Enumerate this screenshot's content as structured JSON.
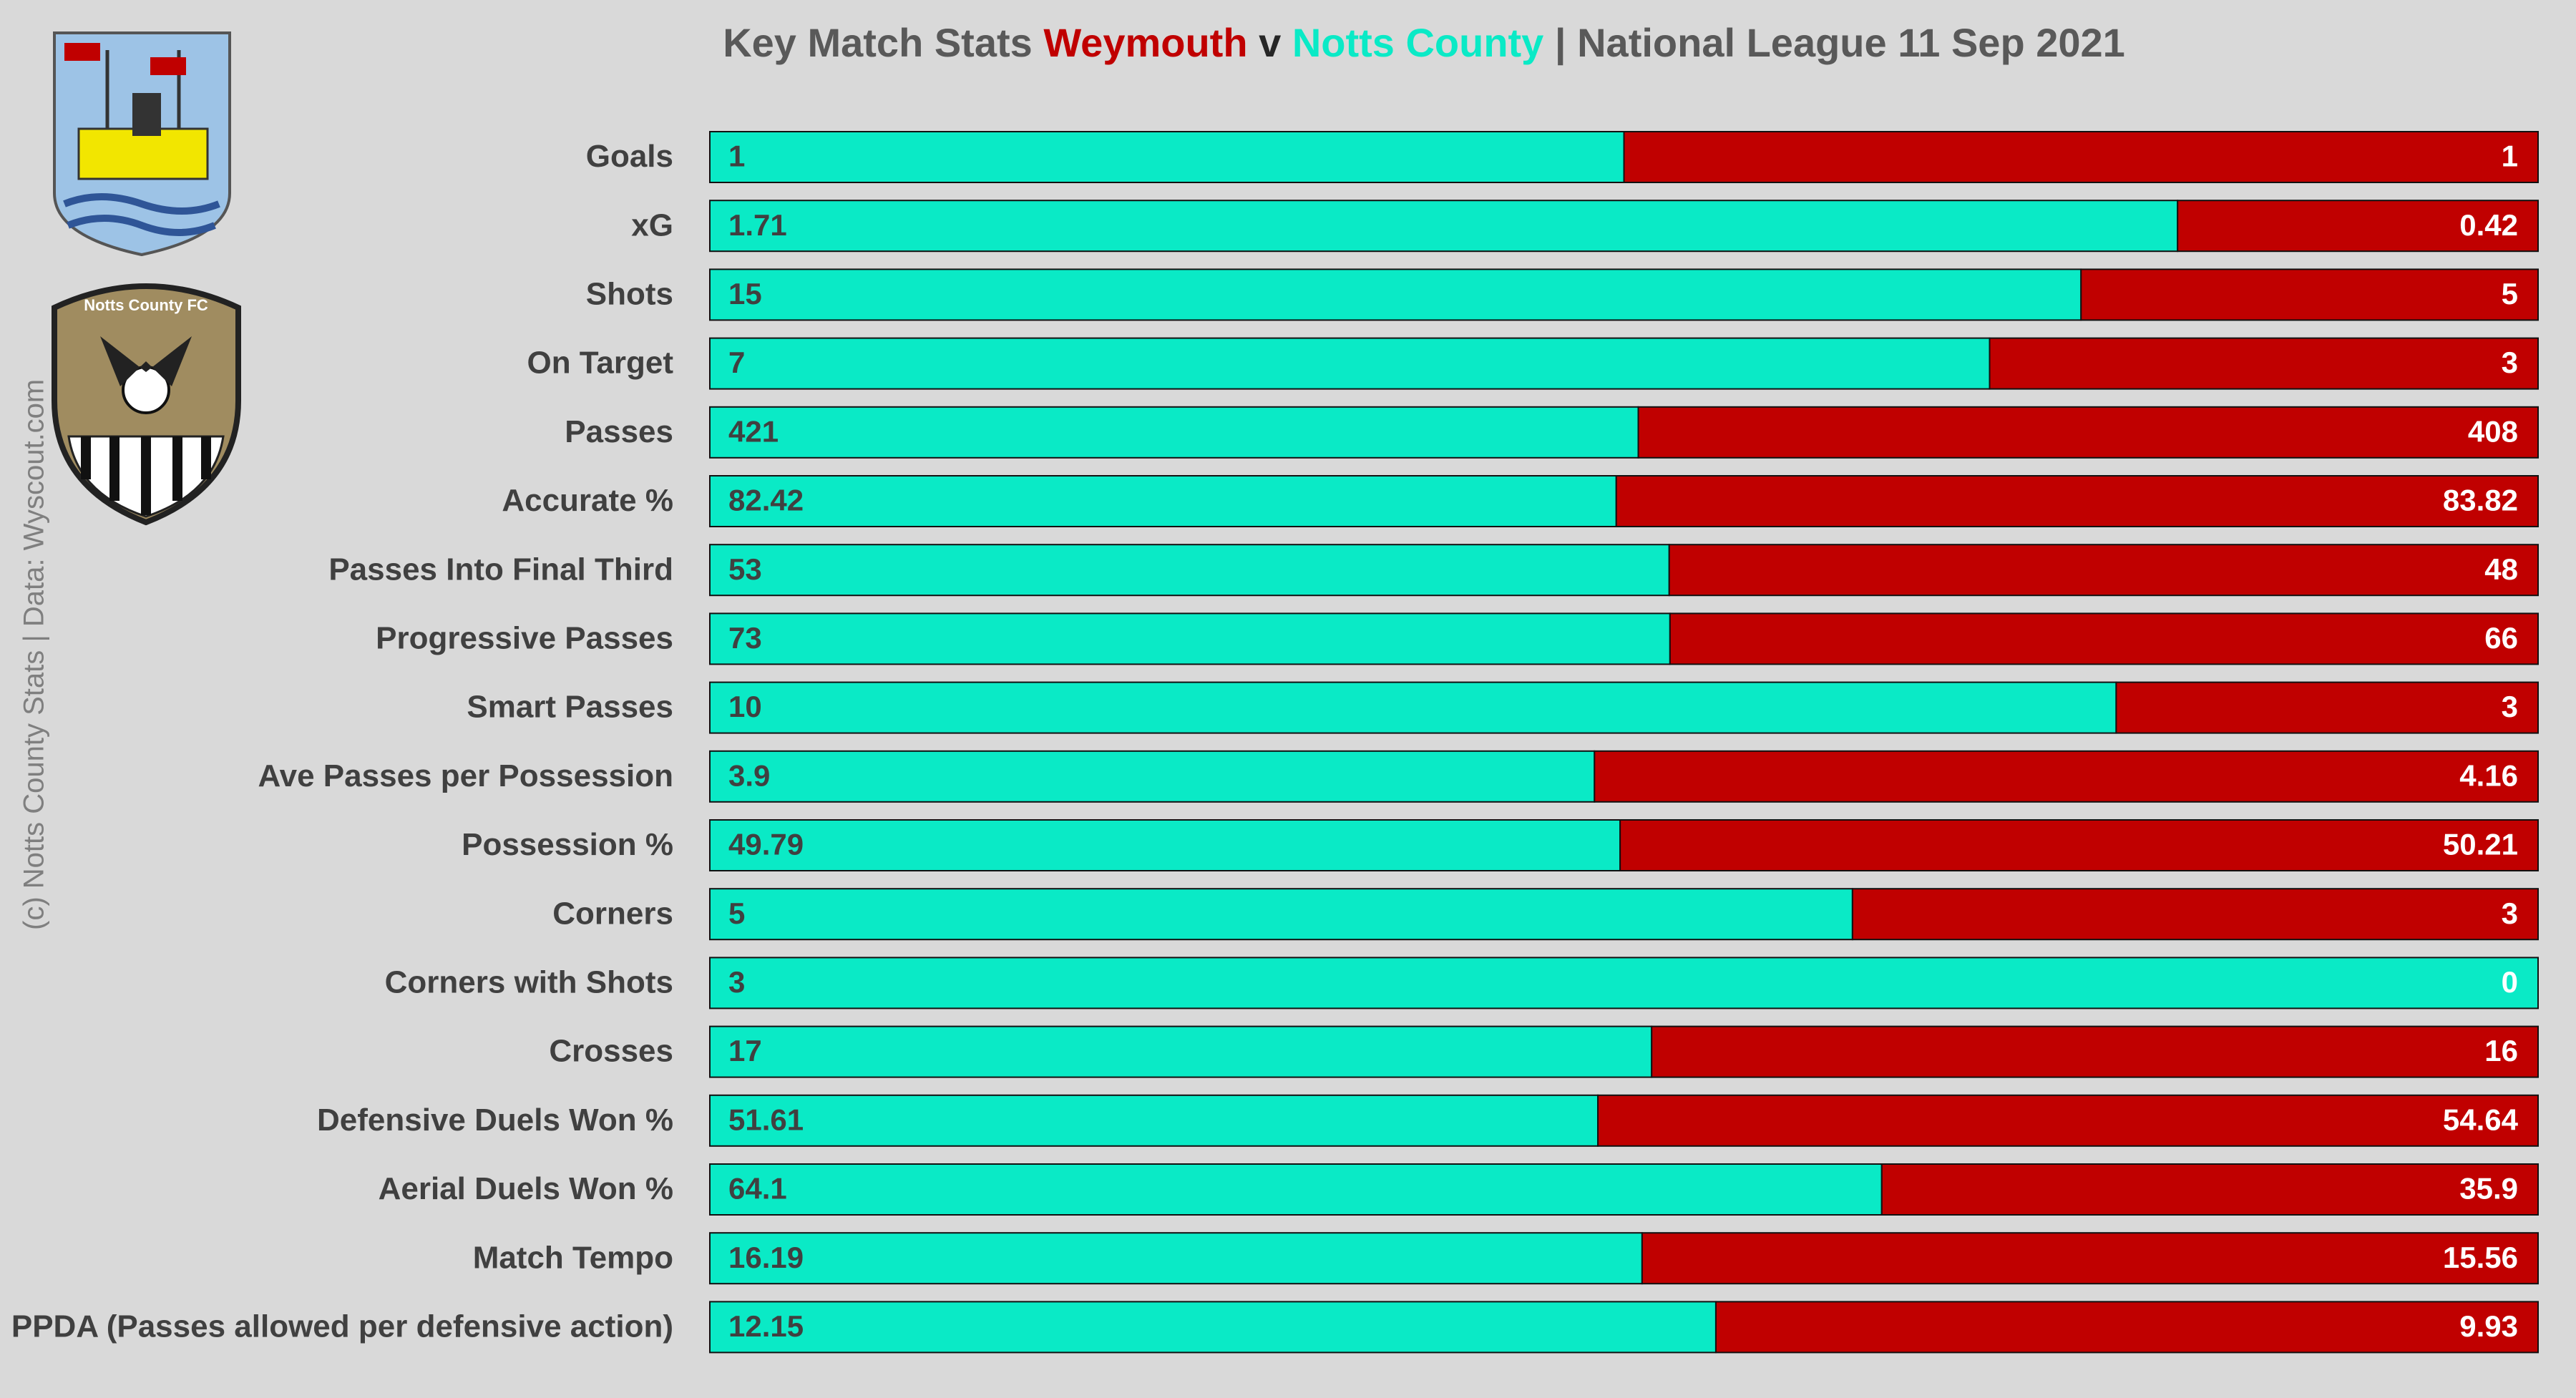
{
  "chart_data": {
    "type": "stacked_bar_100",
    "title": "Key Match Stats",
    "title_joiner": "v",
    "subtitle": "| National League 11 Sep 2021",
    "credit": "(c) Notts County Stats | Data: Wyscout.com",
    "categories": [
      "Goals",
      "xG",
      "Shots",
      "On Target",
      "Passes",
      "Accurate %",
      "Passes Into Final Third",
      "Progressive Passes",
      "Smart Passes",
      "Ave Passes per Possession",
      "Possession %",
      "Corners",
      "Corners with Shots",
      "Crosses",
      "Defensive Duels Won %",
      "Aerial Duels Won %",
      "Match Tempo",
      "PPDA (Passes allowed per defensive action)"
    ],
    "series": [
      {
        "name": "Notts County",
        "color": "#0aeac6",
        "values": [
          1,
          1.71,
          15,
          7,
          421,
          82.42,
          53,
          73,
          10,
          3.9,
          49.79,
          5,
          3,
          17,
          51.61,
          64.1,
          16.19,
          12.15
        ]
      },
      {
        "name": "Weymouth",
        "color": "#c00000",
        "values": [
          1,
          0.42,
          5,
          3,
          408,
          83.82,
          48,
          66,
          3,
          4.16,
          50.21,
          3,
          0,
          16,
          54.64,
          35.9,
          15.56,
          9.93
        ]
      }
    ]
  }
}
